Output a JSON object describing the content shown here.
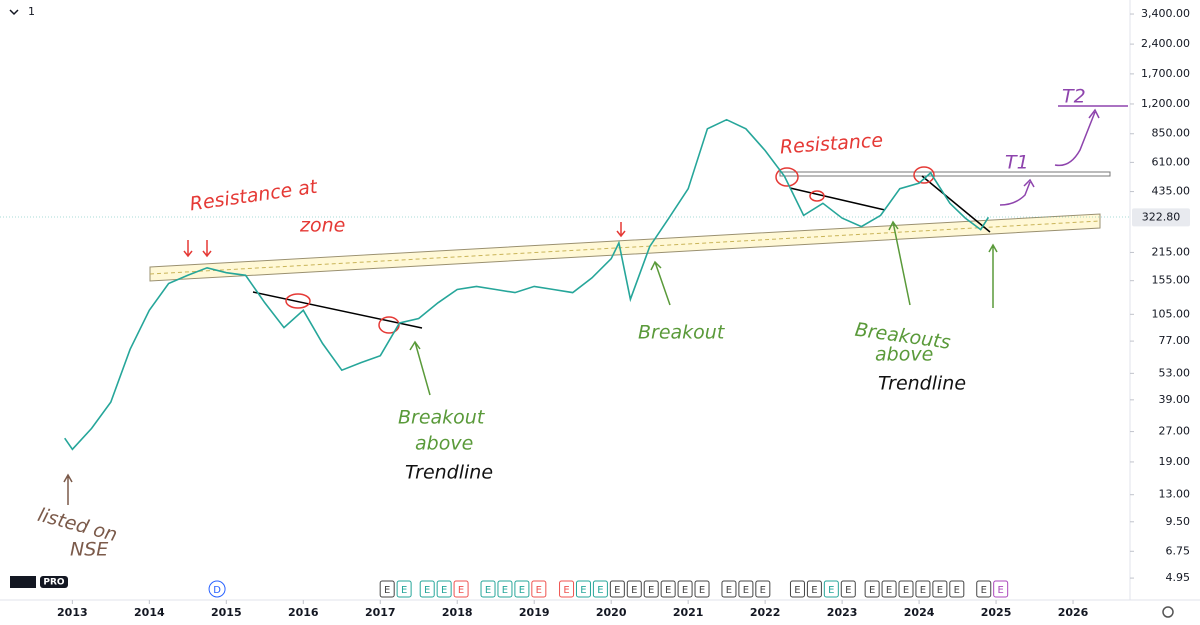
{
  "toolbar": {
    "interval": "1"
  },
  "logo_badge": "PRO",
  "chart_data": {
    "type": "line",
    "log_scale": true,
    "grid": false,
    "x": [
      2012.9,
      2013.0,
      2013.25,
      2013.5,
      2013.75,
      2014.0,
      2014.25,
      2014.5,
      2014.75,
      2015.0,
      2015.25,
      2015.5,
      2015.75,
      2016.0,
      2016.25,
      2016.5,
      2016.75,
      2017.0,
      2017.25,
      2017.5,
      2017.75,
      2018.0,
      2018.25,
      2018.5,
      2018.75,
      2019.0,
      2019.25,
      2019.5,
      2019.75,
      2020.0,
      2020.1,
      2020.25,
      2020.5,
      2020.75,
      2021.0,
      2021.25,
      2021.5,
      2021.75,
      2022.0,
      2022.25,
      2022.5,
      2022.75,
      2023.0,
      2023.25,
      2023.5,
      2023.75,
      2024.0,
      2024.15,
      2024.4,
      2024.6,
      2024.8,
      2024.9
    ],
    "series": [
      {
        "color": "#26a69a",
        "values": [
          25,
          22,
          28,
          38,
          70,
          110,
          150,
          165,
          180,
          170,
          165,
          120,
          90,
          110,
          75,
          55,
          60,
          65,
          95,
          100,
          120,
          140,
          145,
          140,
          135,
          145,
          140,
          135,
          160,
          200,
          240,
          125,
          230,
          320,
          450,
          900,
          1000,
          900,
          700,
          520,
          330,
          380,
          320,
          290,
          330,
          450,
          480,
          540,
          380,
          320,
          280,
          322.8
        ]
      }
    ],
    "last_price": {
      "value": 322.8,
      "label": "322.80"
    },
    "xlim": [
      2012.06,
      2026.74
    ],
    "xticks": [
      2013,
      2014,
      2015,
      2016,
      2017,
      2018,
      2019,
      2020,
      2021,
      2022,
      2023,
      2024,
      2025,
      2026
    ],
    "ylim": [
      3.84,
      4000
    ],
    "yticks": [
      {
        "value": 3400,
        "label": "3,400.00"
      },
      {
        "value": 2400,
        "label": "2,400.00"
      },
      {
        "value": 1700,
        "label": "1,700.00"
      },
      {
        "value": 1200,
        "label": "1,200.00"
      },
      {
        "value": 850,
        "label": "850.00"
      },
      {
        "value": 610,
        "label": "610.00"
      },
      {
        "value": 435,
        "label": "435.00"
      },
      {
        "value": 215,
        "label": "215.00"
      },
      {
        "value": 155,
        "label": "155.00"
      },
      {
        "value": 105,
        "label": "105.00"
      },
      {
        "value": 77,
        "label": "77.00"
      },
      {
        "value": 53,
        "label": "53.00"
      },
      {
        "value": 39,
        "label": "39.00"
      },
      {
        "value": 27,
        "label": "27.00"
      },
      {
        "value": 19,
        "label": "19.00"
      },
      {
        "value": 13,
        "label": "13.00"
      },
      {
        "value": 9.5,
        "label": "9.50"
      },
      {
        "value": 6.75,
        "label": "6.75"
      },
      {
        "value": 4.95,
        "label": "4.95"
      }
    ],
    "events": [
      {
        "x": 2014.88,
        "label": "D",
        "color": "#2962ff"
      },
      {
        "x": 2017.09,
        "label": "E",
        "color": "#444444"
      },
      {
        "x": 2017.31,
        "label": "E",
        "color": "#26a69a"
      },
      {
        "x": 2017.61,
        "label": "E",
        "color": "#26a69a"
      },
      {
        "x": 2017.83,
        "label": "E",
        "color": "#26a69a"
      },
      {
        "x": 2018.05,
        "label": "E",
        "color": "#ef5350"
      },
      {
        "x": 2018.4,
        "label": "E",
        "color": "#26a69a"
      },
      {
        "x": 2018.62,
        "label": "E",
        "color": "#26a69a"
      },
      {
        "x": 2018.84,
        "label": "E",
        "color": "#26a69a"
      },
      {
        "x": 2019.06,
        "label": "E",
        "color": "#ef5350"
      },
      {
        "x": 2019.42,
        "label": "E",
        "color": "#ef5350"
      },
      {
        "x": 2019.64,
        "label": "E",
        "color": "#26a69a"
      },
      {
        "x": 2019.86,
        "label": "E",
        "color": "#26a69a"
      },
      {
        "x": 2020.08,
        "label": "E",
        "color": "#444444"
      },
      {
        "x": 2020.3,
        "label": "E",
        "color": "#444444"
      },
      {
        "x": 2020.52,
        "label": "E",
        "color": "#444444"
      },
      {
        "x": 2020.74,
        "label": "E",
        "color": "#444444"
      },
      {
        "x": 2020.96,
        "label": "E",
        "color": "#444444"
      },
      {
        "x": 2021.18,
        "label": "E",
        "color": "#444444"
      },
      {
        "x": 2021.53,
        "label": "E",
        "color": "#444444"
      },
      {
        "x": 2021.75,
        "label": "E",
        "color": "#444444"
      },
      {
        "x": 2021.97,
        "label": "E",
        "color": "#444444"
      },
      {
        "x": 2022.42,
        "label": "E",
        "color": "#444444"
      },
      {
        "x": 2022.64,
        "label": "E",
        "color": "#444444"
      },
      {
        "x": 2022.86,
        "label": "E",
        "color": "#26a69a"
      },
      {
        "x": 2023.08,
        "label": "E",
        "color": "#444444"
      },
      {
        "x": 2023.39,
        "label": "E",
        "color": "#444444"
      },
      {
        "x": 2023.61,
        "label": "E",
        "color": "#444444"
      },
      {
        "x": 2023.83,
        "label": "E",
        "color": "#444444"
      },
      {
        "x": 2024.05,
        "label": "E",
        "color": "#444444"
      },
      {
        "x": 2024.27,
        "label": "E",
        "color": "#444444"
      },
      {
        "x": 2024.49,
        "label": "E",
        "color": "#444444"
      },
      {
        "x": 2024.84,
        "label": "E",
        "color": "#444444"
      },
      {
        "x": 2025.06,
        "label": "E",
        "color": "#ab47bc"
      }
    ],
    "annotations": [
      {
        "text": "Resistance at",
        "color": "#e53935"
      },
      {
        "text": "zone",
        "color": "#e53935"
      },
      {
        "text": "Resistance",
        "color": "#e53935"
      },
      {
        "text": "Breakout",
        "color": "#5a9a3a"
      },
      {
        "text": "Breakout",
        "color": "#5a9a3a"
      },
      {
        "text": "above",
        "color": "#5a9a3a"
      },
      {
        "text": "Trendline",
        "color": "#111111"
      },
      {
        "text": "Breakouts",
        "color": "#5a9a3a"
      },
      {
        "text": "above",
        "color": "#5a9a3a"
      },
      {
        "text": "Trendline",
        "color": "#111111"
      },
      {
        "text": "listed on",
        "color": "#7b5a4a"
      },
      {
        "text": "NSE",
        "color": "#7b5a4a"
      },
      {
        "text": "T1",
        "color": "#8e44ad"
      },
      {
        "text": "T2",
        "color": "#8e44ad"
      }
    ]
  }
}
